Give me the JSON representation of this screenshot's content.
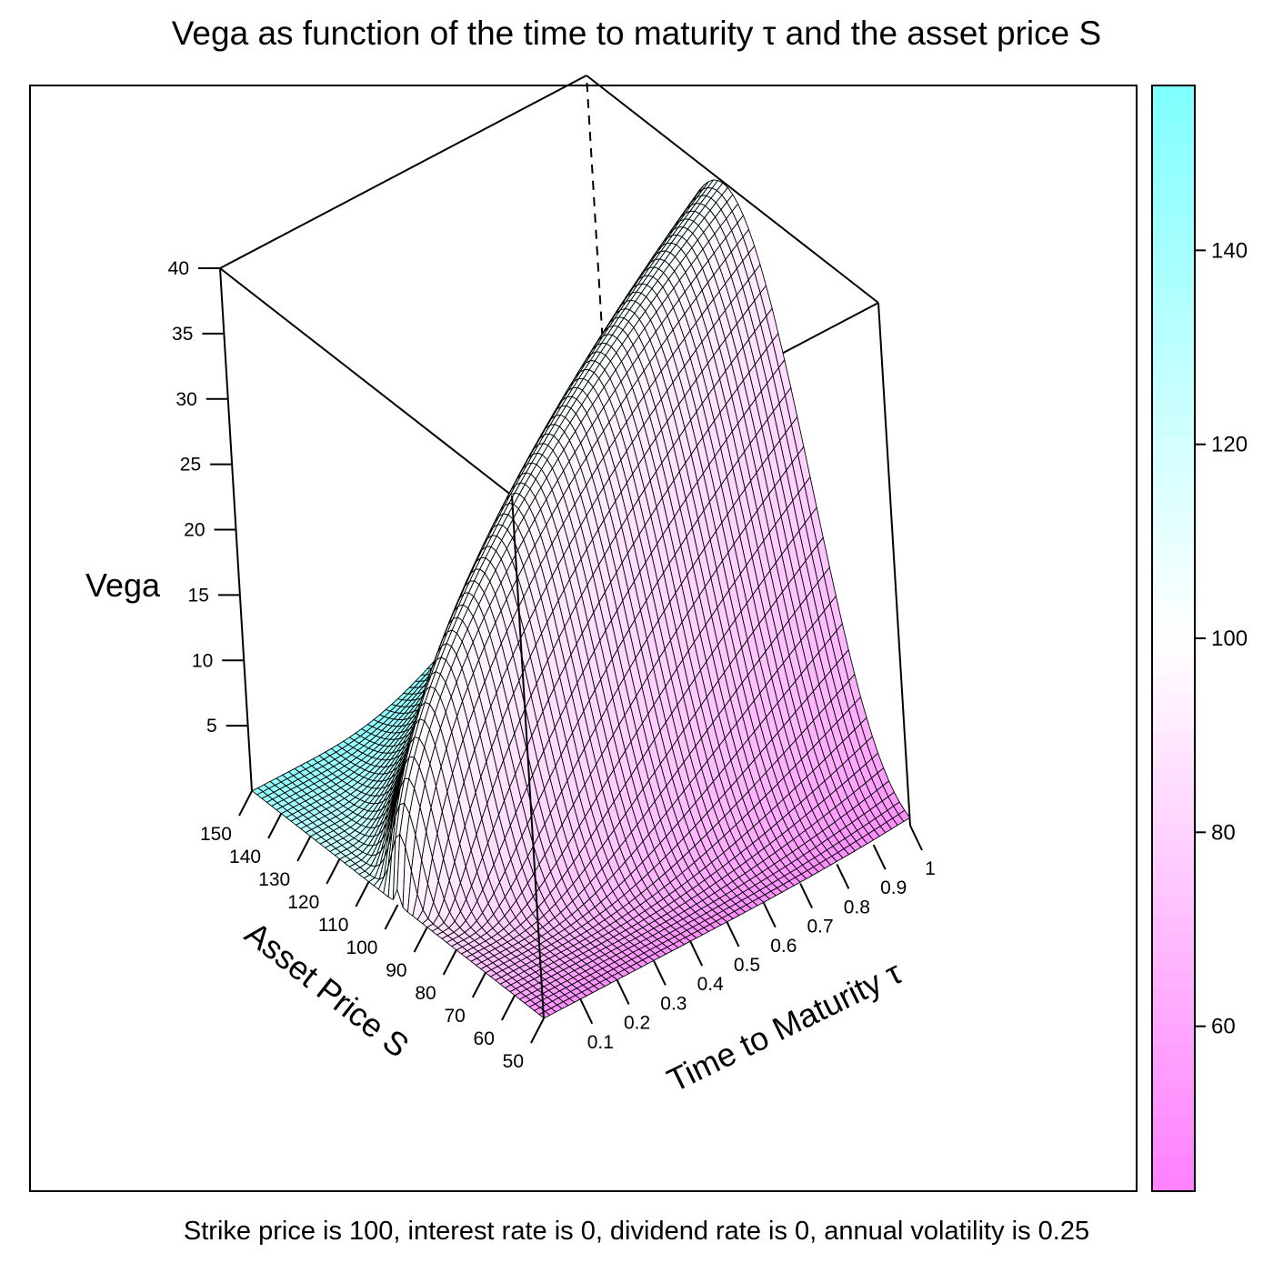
{
  "chart_data": {
    "type": "surface3d",
    "title": "Vega as function of the time to maturity τ and the asset price S",
    "subtitle": "Strike price is 100, interest rate is 0, dividend rate is 0, annual volatility is 0.25",
    "xlabel": "Time to Maturity  τ",
    "ylabel": "Asset Price S",
    "zlabel": "Vega",
    "x_ticks": [
      "0.1",
      "0.2",
      "0.3",
      "0.4",
      "0.5",
      "0.6",
      "0.7",
      "0.8",
      "0.9",
      "1"
    ],
    "y_ticks": [
      "50",
      "60",
      "70",
      "80",
      "90",
      "100",
      "110",
      "120",
      "130",
      "140",
      "150"
    ],
    "z_ticks": [
      "5",
      "10",
      "15",
      "20",
      "25",
      "30",
      "35",
      "40"
    ],
    "xlim": [
      0,
      1
    ],
    "ylim": [
      50,
      150
    ],
    "zlim": [
      0,
      40
    ],
    "surface": {
      "function": "Black-Scholes vega S*sqrt(tau)*phi(d1)",
      "strike": 100,
      "rate": 0,
      "dividend": 0,
      "volatility": 0.25
    },
    "colorkey": {
      "ticks": [
        "60",
        "80",
        "100",
        "120",
        "140"
      ],
      "range": [
        43,
        157
      ],
      "low_color": "#ff80ff",
      "mid_color": "#ffffff",
      "high_color": "#80ffff"
    },
    "grid": true,
    "legend_placement": "right"
  }
}
